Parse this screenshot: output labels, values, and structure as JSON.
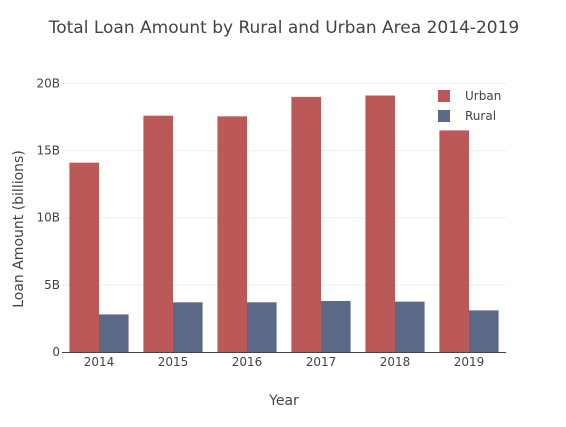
{
  "chart_data": {
    "type": "bar",
    "title": "Total Loan Amount by Rural and Urban Area 2014-2019",
    "xlabel": "Year",
    "ylabel": "Loan Amount (billions)",
    "categories": [
      "2014",
      "2015",
      "2016",
      "2017",
      "2018",
      "2019"
    ],
    "series": [
      {
        "name": "Urban",
        "color": "#b24745",
        "values": [
          14.1,
          17.6,
          17.55,
          19.0,
          19.1,
          16.5
        ]
      },
      {
        "name": "Rural",
        "color": "#4a5a7a",
        "values": [
          2.8,
          3.7,
          3.7,
          3.8,
          3.75,
          3.1
        ]
      }
    ],
    "ylim": [
      0,
      21
    ],
    "yticks": [
      0,
      5,
      10,
      15,
      20
    ],
    "ytick_labels": [
      "0",
      "5B",
      "10B",
      "15B",
      "20B"
    ],
    "grid": true,
    "legend_position": "top-right"
  }
}
